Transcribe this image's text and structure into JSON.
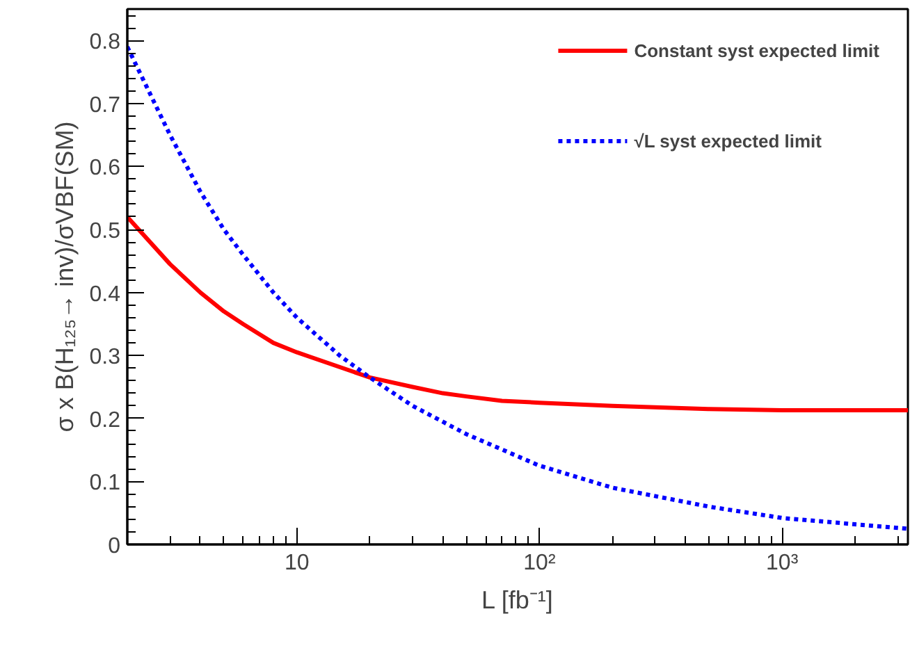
{
  "chart_data": {
    "type": "line",
    "xlabel": "L [fb⁻¹]",
    "ylabel": "σ x B(H₁₂₅→ inv)/σVBF(SM)",
    "log": "x",
    "xlim": [
      2,
      3300
    ],
    "ylim": [
      0,
      0.85
    ],
    "xticks": [
      10,
      {
        "value": 100,
        "label": "10²"
      },
      {
        "value": 1000,
        "label": "10³"
      }
    ],
    "yticks": [
      0,
      0.1,
      0.2,
      0.3,
      0.4,
      0.5,
      0.6,
      0.7,
      0.8
    ],
    "grid": false,
    "legend": "top right",
    "marker": "none",
    "series": [
      {
        "name": "Constant syst expected limit",
        "color": "#ff0000",
        "line_style": "solid",
        "x": [
          2,
          3,
          4,
          5,
          6,
          8,
          10,
          20,
          30,
          40,
          50,
          70,
          100,
          200,
          500,
          1000,
          3300
        ],
        "values": [
          0.52,
          0.445,
          0.4,
          0.37,
          0.35,
          0.32,
          0.305,
          0.265,
          0.25,
          0.24,
          0.235,
          0.228,
          0.225,
          0.22,
          0.215,
          0.213,
          0.213
        ]
      },
      {
        "name": "√L syst expected limit",
        "color": "#0000ff",
        "line_style": "dotted",
        "x": [
          2,
          3,
          4,
          5,
          6,
          8,
          10,
          15,
          20,
          30,
          50,
          100,
          200,
          500,
          1000,
          2000,
          3300
        ],
        "values": [
          0.79,
          0.65,
          0.56,
          0.5,
          0.46,
          0.4,
          0.36,
          0.3,
          0.265,
          0.22,
          0.175,
          0.125,
          0.09,
          0.06,
          0.042,
          0.032,
          0.025
        ]
      }
    ]
  }
}
